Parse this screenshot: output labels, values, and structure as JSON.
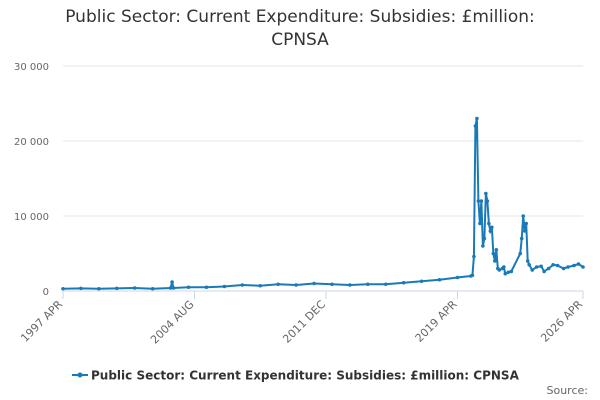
{
  "chart_data": {
    "type": "line",
    "title": "Public Sector: Current Expenditure: Subsidies: £million: CPNSA",
    "x": [
      "1997 APR",
      "1998 APR",
      "1999 APR",
      "2000 APR",
      "2001 APR",
      "2002 APR",
      "2003 APR",
      "2003 MAY",
      "2003 JUN",
      "2004 APR",
      "2005 APR",
      "2006 APR",
      "2007 APR",
      "2008 APR",
      "2009 APR",
      "2010 APR",
      "2011 APR",
      "2012 APR",
      "2013 APR",
      "2014 APR",
      "2015 APR",
      "2016 APR",
      "2017 APR",
      "2018 APR",
      "2019 APR",
      "2020 JAN",
      "2020 FEB",
      "2020 MAR",
      "2020 APR",
      "2020 MAY",
      "2020 JUN",
      "2020 JUL",
      "2020 AUG",
      "2020 SEP",
      "2020 OCT",
      "2020 NOV",
      "2020 DEC",
      "2021 JAN",
      "2021 FEB",
      "2021 MAR",
      "2021 APR",
      "2021 MAY",
      "2021 JUN",
      "2021 JUL",
      "2021 AUG",
      "2021 OCT",
      "2021 NOV",
      "2021 DEC",
      "2022 FEB",
      "2022 APR",
      "2022 OCT",
      "2022 NOV",
      "2022 DEC",
      "2023 JAN",
      "2023 FEB",
      "2023 MAR",
      "2023 APR",
      "2023 JUN",
      "2023 SEP",
      "2023 DEC",
      "2024 FEB",
      "2024 MAY",
      "2024 AUG",
      "2024 NOV",
      "2025 MAR",
      "2025 JUN",
      "2025 OCT",
      "2026 JAN",
      "2026 APR"
    ],
    "series": [
      {
        "name": "Public Sector: Current Expenditure: Subsidies: £million: CPNSA",
        "color": "#1a7ab8",
        "values": [
          300,
          350,
          300,
          350,
          400,
          300,
          400,
          1200,
          400,
          500,
          500,
          600,
          800,
          700,
          900,
          800,
          1000,
          900,
          800,
          900,
          900,
          1100,
          1300,
          1500,
          1800,
          2000,
          2100,
          4600,
          22000,
          23000,
          12000,
          9000,
          12000,
          6000,
          7000,
          13000,
          12000,
          9000,
          8000,
          8500,
          5000,
          4000,
          5500,
          3000,
          2800,
          3000,
          3200,
          2300,
          2500,
          2600,
          5000,
          7000,
          10000,
          8000,
          9000,
          4000,
          3500,
          2800,
          3200,
          3300,
          2600,
          3000,
          3500,
          3400,
          3000,
          3200,
          3400,
          3600,
          3200
        ]
      }
    ],
    "xlim": [
      "1997 APR",
      "2026 APR"
    ],
    "xticks": [
      "1997 APR",
      "2004 AUG",
      "2011 DEC",
      "2019 APR",
      "2026 APR"
    ],
    "ylim": [
      0,
      30000
    ],
    "yticks": [
      0,
      {
        "value": 10000,
        "label": "10 000"
      },
      {
        "value": 20000,
        "label": "20 000"
      },
      {
        "value": 30000,
        "label": "30 000"
      }
    ],
    "grid": true,
    "footer": "Source:"
  }
}
